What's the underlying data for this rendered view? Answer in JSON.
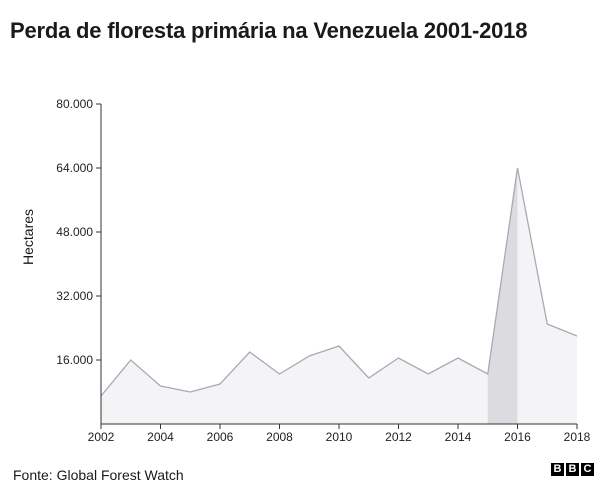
{
  "chart_data": {
    "type": "area",
    "title": "Perda de floresta primária na Venezuela 2001-2018",
    "ylabel": "Hectares",
    "xlabel": "",
    "x": [
      2002,
      2003,
      2004,
      2005,
      2006,
      2007,
      2008,
      2009,
      2010,
      2011,
      2012,
      2013,
      2014,
      2015,
      2016,
      2017,
      2018
    ],
    "values": [
      7000,
      16000,
      9500,
      8000,
      10000,
      18000,
      12500,
      17000,
      19500,
      11500,
      16500,
      12500,
      16500,
      12500,
      64000,
      25000,
      22000
    ],
    "xlim": [
      2002,
      2018
    ],
    "ylim": [
      0,
      80000
    ],
    "yticks": [
      16000,
      32000,
      48000,
      64000,
      80000
    ],
    "ytick_labels": [
      "16.000",
      "32.000",
      "48.000",
      "64.000",
      "80.000"
    ],
    "xticks": [
      2002,
      2004,
      2006,
      2008,
      2010,
      2012,
      2014,
      2016,
      2018
    ],
    "xtick_labels": [
      "2002",
      "2004",
      "2006",
      "2008",
      "2010",
      "2012",
      "2014",
      "2016",
      "2018"
    ],
    "highlight_range": [
      2015,
      2016
    ],
    "grid": false,
    "colors": {
      "fill": "#f4f4f6",
      "highlight": "#dcdce0",
      "line": "#a9a9b4",
      "axis": "#333333"
    }
  },
  "footer": {
    "source": "Fonte: Global Forest Watch",
    "logo_letters": [
      "B",
      "B",
      "C"
    ]
  }
}
